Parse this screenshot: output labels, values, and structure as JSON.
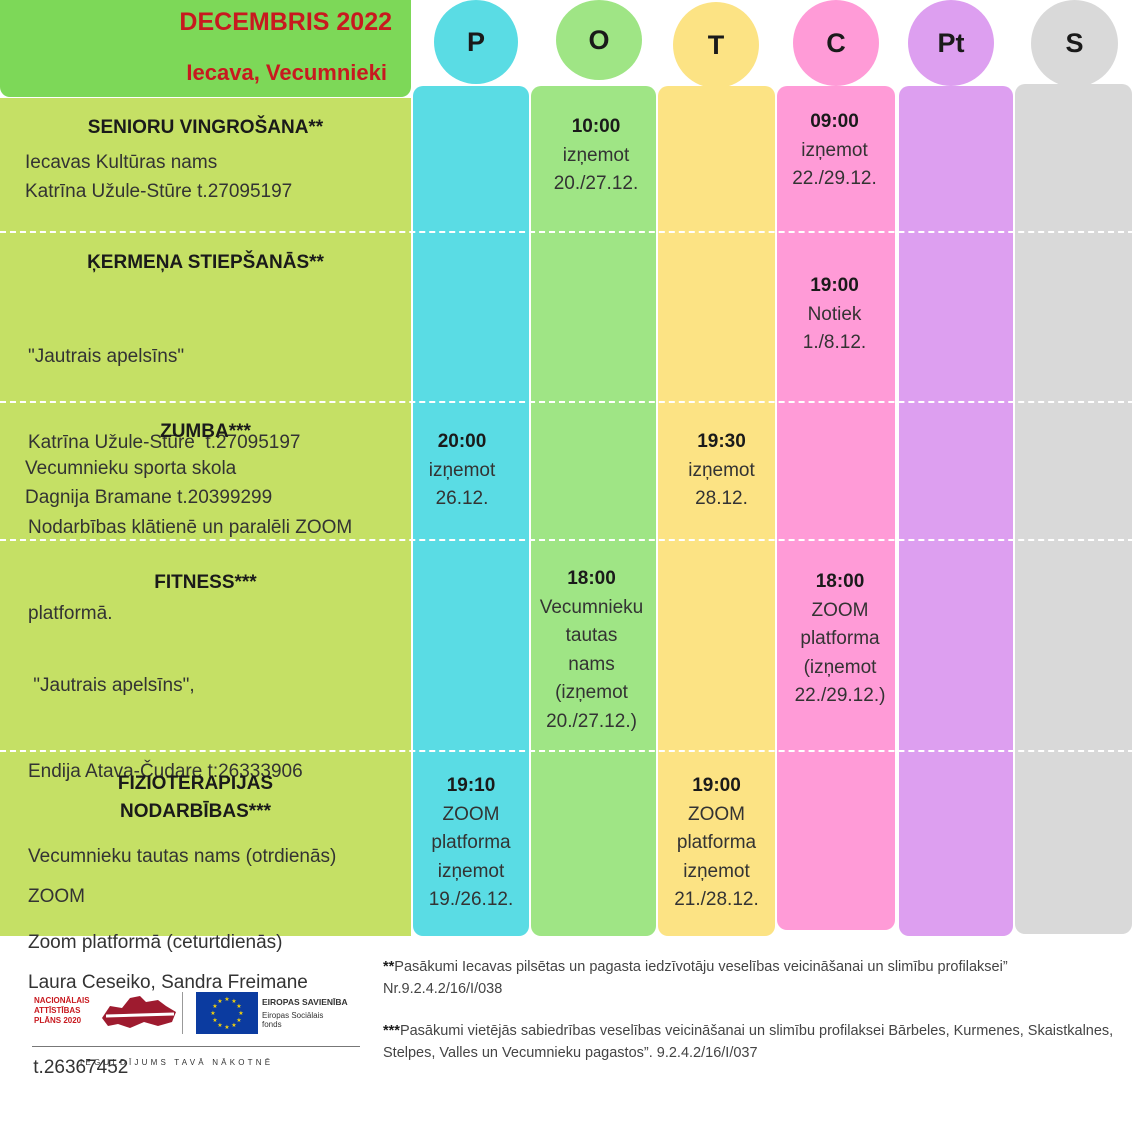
{
  "header": {
    "month": "DECEMBRIS 2022",
    "place": "Iecava, Vecumnieki"
  },
  "days": [
    {
      "label": "P",
      "color": "#5adce4"
    },
    {
      "label": "O",
      "color": "#9fe585"
    },
    {
      "label": "T",
      "color": "#fce384"
    },
    {
      "label": "C",
      "color": "#ff9bd7"
    },
    {
      "label": "Pt",
      "color": "#dd9ff0"
    },
    {
      "label": "S",
      "color": "#d9d9d9"
    }
  ],
  "activities": [
    {
      "title": "SENIORU VINGROŠANA**",
      "info": [
        "Iecavas Kultūras nams",
        "Katrīna Užule-Stūre  t.27095197"
      ]
    },
    {
      "title": "ĶERMEŅA STIEPŠANĀS**",
      "info": [
        "\"Jautrais apelsīns\"",
        "Katrīna Užule-Stūre  t.27095197",
        "Nodarbības klātienē un paralēli ZOOM",
        "platformā."
      ]
    },
    {
      "title": "ZUMBA***",
      "info": [
        "Vecumnieku sporta skola",
        "Dagnija Bramane t.20399299"
      ]
    },
    {
      "title": "FITNESS***",
      "info": [
        " \"Jautrais apelsīns\",",
        "Endija Atava-Čudare t:26333906",
        "Vecumnieku tautas nams (otrdienās)",
        "Zoom platformā (ceturtdienās)"
      ]
    },
    {
      "title_lines": [
        "FIZIOTERAPIJAS",
        "NODARBĪBAS***"
      ],
      "info": [
        "ZOOM",
        "Laura Ceseiko, Sandra Freimane",
        " t.26367452"
      ]
    }
  ],
  "schedule": {
    "senioru_o": {
      "time": "10:00",
      "lines": [
        "izņemot",
        "20./27.12."
      ]
    },
    "senioru_c": {
      "time": "09:00",
      "lines": [
        "izņemot",
        "22./29.12."
      ]
    },
    "kermena_c": {
      "time": "19:00",
      "lines": [
        "Notiek",
        "1./8.12."
      ]
    },
    "zumba_p": {
      "time": "20:00",
      "lines": [
        "izņemot",
        "26.12."
      ]
    },
    "zumba_t": {
      "time": "19:30",
      "lines": [
        "izņemot",
        "28.12."
      ]
    },
    "fitness_o": {
      "time": "18:00",
      "lines": [
        "Vecumnieku",
        "tautas",
        "nams",
        "(izņemot",
        "20./27.12.)"
      ]
    },
    "fitness_c": {
      "time": "18:00",
      "lines": [
        "ZOOM",
        "platforma",
        "(izņemot",
        "22./29.12.)"
      ]
    },
    "fizio_p": {
      "time": "19:10",
      "lines": [
        "ZOOM",
        "platforma",
        "izņemot",
        "19./26.12."
      ]
    },
    "fizio_t": {
      "time": "19:00",
      "lines": [
        "ZOOM",
        "platforma",
        "izņemot",
        "21./28.12."
      ]
    }
  },
  "footer": {
    "nap_lines": [
      "NACIONĀLAIS",
      "ATTĪSTĪBAS",
      "PLĀNS 2020"
    ],
    "eu_title": "EIROPAS SAVIENĪBA",
    "eu_fund_lines": [
      "Eiropas Sociālais",
      "fonds"
    ],
    "slogan": "IEGULDĪJUMS TAVĀ NĀKOTNĒ",
    "note1_mark": "**",
    "note1": "Pasākumi Iecavas pilsētas un pagasta iedzīvotāju veselības veicināšanai un slimību profilaksei” Nr.9.2.4.2/16/I/038",
    "note2_mark": "***",
    "note2": "Pasākumi vietējās sabiedrības veselības veicināšanai un slimību profilaksei Bārbeles, Kurmenes, Skaistkalnes, Stelpes, Valles un Vecumnieku pagastos”. 9.2.4.2/16/I/037"
  }
}
